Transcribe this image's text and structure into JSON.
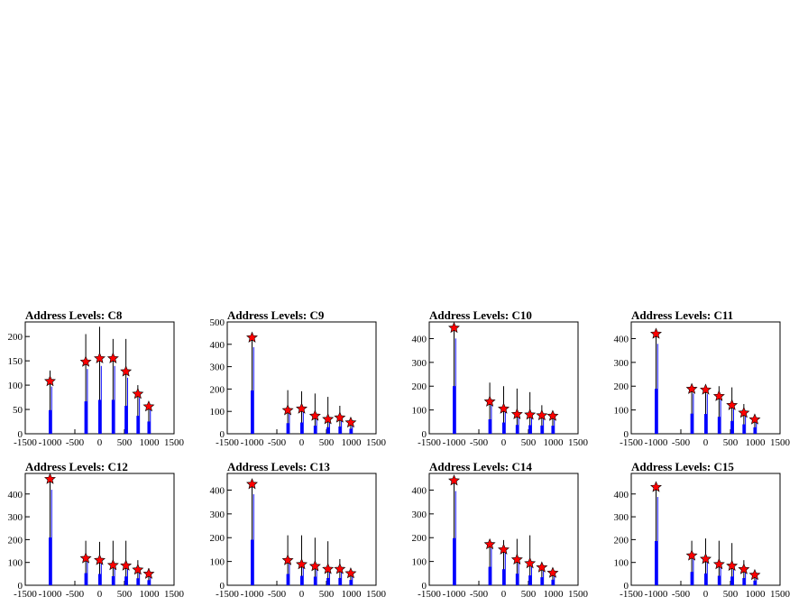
{
  "chart_data": [
    {
      "type": "bar",
      "title": "Address Levels: C8",
      "xlabel": "",
      "ylabel": "",
      "xlim": [
        -1500,
        1500
      ],
      "ylim": [
        0,
        230
      ],
      "yticks": [
        0,
        50,
        100,
        150,
        200
      ],
      "xticks": [
        -1500,
        -1000,
        -500,
        0,
        500,
        1000,
        1500
      ],
      "peaks": [
        {
          "x": -1000,
          "value": 108,
          "height": 130
        },
        {
          "x": -280,
          "value": 148,
          "height": 205
        },
        {
          "x": 0,
          "value": 155,
          "height": 220
        },
        {
          "x": 270,
          "value": 155,
          "height": 195
        },
        {
          "x": 530,
          "value": 128,
          "height": 195
        },
        {
          "x": 770,
          "value": 82,
          "height": 100
        },
        {
          "x": 990,
          "value": 56,
          "height": 65
        }
      ]
    },
    {
      "type": "bar",
      "title": "Address Levels: C9",
      "xlabel": "",
      "ylabel": "",
      "xlim": [
        -1500,
        1500
      ],
      "ylim": [
        0,
        500
      ],
      "yticks": [
        0,
        100,
        200,
        300,
        400,
        500
      ],
      "xticks": [
        -1500,
        -1000,
        -500,
        0,
        500,
        1000,
        1500
      ],
      "peaks": [
        {
          "x": -1000,
          "value": 430,
          "height": 450
        },
        {
          "x": -280,
          "value": 105,
          "height": 195
        },
        {
          "x": 0,
          "value": 112,
          "height": 190
        },
        {
          "x": 270,
          "value": 80,
          "height": 180
        },
        {
          "x": 530,
          "value": 65,
          "height": 165
        },
        {
          "x": 770,
          "value": 72,
          "height": 125
        },
        {
          "x": 990,
          "value": 50,
          "height": 70
        }
      ]
    },
    {
      "type": "bar",
      "title": "Address Levels: C10",
      "xlabel": "",
      "ylabel": "",
      "xlim": [
        -1500,
        1500
      ],
      "ylim": [
        0,
        470
      ],
      "yticks": [
        0,
        100,
        200,
        300,
        400
      ],
      "xticks": [
        -1500,
        -1000,
        -500,
        0,
        500,
        1000,
        1500
      ],
      "peaks": [
        {
          "x": -1000,
          "value": 445,
          "height": 460
        },
        {
          "x": -280,
          "value": 135,
          "height": 215
        },
        {
          "x": 0,
          "value": 105,
          "height": 200
        },
        {
          "x": 270,
          "value": 82,
          "height": 190
        },
        {
          "x": 530,
          "value": 80,
          "height": 175
        },
        {
          "x": 770,
          "value": 77,
          "height": 120
        },
        {
          "x": 990,
          "value": 75,
          "height": 80
        }
      ]
    },
    {
      "type": "bar",
      "title": "Address Levels: C11",
      "xlabel": "",
      "ylabel": "",
      "xlim": [
        -1500,
        1500
      ],
      "ylim": [
        0,
        470
      ],
      "yticks": [
        0,
        100,
        200,
        300,
        400
      ],
      "xticks": [
        -1500,
        -1000,
        -500,
        0,
        500,
        1000,
        1500
      ],
      "peaks": [
        {
          "x": -1000,
          "value": 420,
          "height": 440
        },
        {
          "x": -280,
          "value": 188,
          "height": 210
        },
        {
          "x": 0,
          "value": 185,
          "height": 205
        },
        {
          "x": 270,
          "value": 158,
          "height": 200
        },
        {
          "x": 530,
          "value": 120,
          "height": 195
        },
        {
          "x": 770,
          "value": 88,
          "height": 125
        },
        {
          "x": 990,
          "value": 60,
          "height": 75
        }
      ]
    },
    {
      "type": "bar",
      "title": "Address Levels: C12",
      "xlabel": "",
      "ylabel": "",
      "xlim": [
        -1500,
        1500
      ],
      "ylim": [
        0,
        490
      ],
      "yticks": [
        0,
        100,
        200,
        300,
        400
      ],
      "xticks": [
        -1500,
        -1000,
        -500,
        0,
        500,
        1000,
        1500
      ],
      "peaks": [
        {
          "x": -1000,
          "value": 465,
          "height": 480
        },
        {
          "x": -280,
          "value": 118,
          "height": 195
        },
        {
          "x": 0,
          "value": 110,
          "height": 190
        },
        {
          "x": 270,
          "value": 88,
          "height": 195
        },
        {
          "x": 530,
          "value": 86,
          "height": 195
        },
        {
          "x": 770,
          "value": 68,
          "height": 110
        },
        {
          "x": 990,
          "value": 50,
          "height": 75
        }
      ]
    },
    {
      "type": "bar",
      "title": "Address Levels: C13",
      "xlabel": "",
      "ylabel": "",
      "xlim": [
        -1500,
        1500
      ],
      "ylim": [
        0,
        470
      ],
      "yticks": [
        0,
        100,
        200,
        300,
        400
      ],
      "xticks": [
        -1500,
        -1000,
        -500,
        0,
        500,
        1000,
        1500
      ],
      "peaks": [
        {
          "x": -1000,
          "value": 425,
          "height": 440
        },
        {
          "x": -280,
          "value": 105,
          "height": 210
        },
        {
          "x": 0,
          "value": 88,
          "height": 210
        },
        {
          "x": 270,
          "value": 80,
          "height": 200
        },
        {
          "x": 530,
          "value": 68,
          "height": 185
        },
        {
          "x": 770,
          "value": 68,
          "height": 110
        },
        {
          "x": 990,
          "value": 50,
          "height": 65
        }
      ]
    },
    {
      "type": "bar",
      "title": "Address Levels: C14",
      "xlabel": "",
      "ylabel": "",
      "xlim": [
        -1500,
        1500
      ],
      "ylim": [
        0,
        470
      ],
      "yticks": [
        0,
        100,
        200,
        300,
        400
      ],
      "xticks": [
        -1500,
        -1000,
        -500,
        0,
        500,
        1000,
        1500
      ],
      "peaks": [
        {
          "x": -1000,
          "value": 440,
          "height": 455
        },
        {
          "x": -280,
          "value": 172,
          "height": 190
        },
        {
          "x": 0,
          "value": 150,
          "height": 190
        },
        {
          "x": 270,
          "value": 108,
          "height": 195
        },
        {
          "x": 530,
          "value": 92,
          "height": 210
        },
        {
          "x": 770,
          "value": 75,
          "height": 95
        },
        {
          "x": 990,
          "value": 52,
          "height": 65
        }
      ]
    },
    {
      "type": "bar",
      "title": "Address Levels: C15",
      "xlabel": "",
      "ylabel": "",
      "xlim": [
        -1500,
        1500
      ],
      "ylim": [
        0,
        490
      ],
      "yticks": [
        0,
        100,
        200,
        300,
        400
      ],
      "xticks": [
        -1500,
        -1000,
        -500,
        0,
        500,
        1000,
        1500
      ],
      "peaks": [
        {
          "x": -1000,
          "value": 430,
          "height": 450
        },
        {
          "x": -280,
          "value": 130,
          "height": 195
        },
        {
          "x": 0,
          "value": 115,
          "height": 205
        },
        {
          "x": 270,
          "value": 92,
          "height": 195
        },
        {
          "x": 530,
          "value": 85,
          "height": 185
        },
        {
          "x": 770,
          "value": 70,
          "height": 110
        },
        {
          "x": 990,
          "value": 45,
          "height": 60
        }
      ]
    }
  ],
  "colors": {
    "histogram": "#0000ff",
    "envelope": "#000000",
    "marker": "#ff0000",
    "frame": "#000000",
    "background": "#ffffff"
  }
}
